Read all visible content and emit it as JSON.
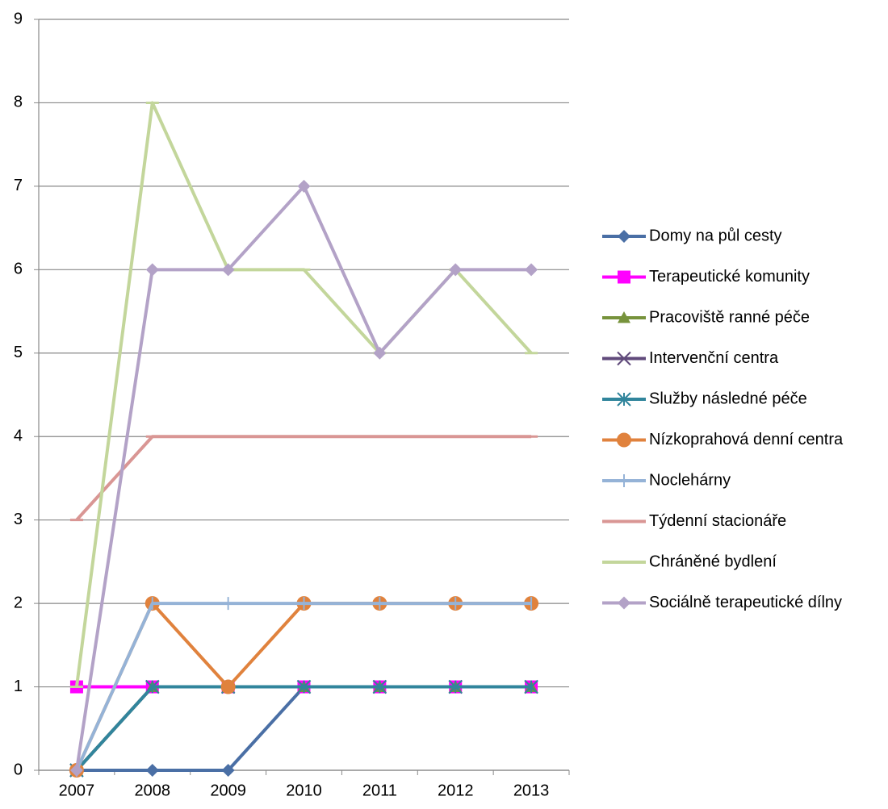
{
  "chart_data": {
    "type": "line",
    "categories": [
      "2007",
      "2008",
      "2009",
      "2010",
      "2011",
      "2012",
      "2013"
    ],
    "ylim": [
      0,
      9
    ],
    "yticks": [
      0,
      1,
      2,
      3,
      4,
      5,
      6,
      7,
      8,
      9
    ],
    "grid": true,
    "legend": "right",
    "series": [
      {
        "name": "Domy na půl cesty",
        "color": "#4a6fa5",
        "marker": "diamond",
        "values": [
          0,
          0,
          0,
          1,
          1,
          1,
          1
        ]
      },
      {
        "name": "Terapeutické komunity",
        "color": "#ff00ff",
        "marker": "square",
        "values": [
          1,
          1,
          1,
          1,
          1,
          1,
          1
        ]
      },
      {
        "name": "Pracoviště ranné péče",
        "color": "#77933c",
        "marker": "triangle",
        "values": [
          0,
          1,
          1,
          1,
          1,
          1,
          1
        ]
      },
      {
        "name": "Intervenční centra",
        "color": "#604a7b",
        "marker": "x",
        "values": [
          0,
          1,
          1,
          1,
          1,
          1,
          1
        ]
      },
      {
        "name": "Služby následné péče",
        "color": "#31859c",
        "marker": "star",
        "values": [
          0,
          1,
          1,
          1,
          1,
          1,
          1
        ]
      },
      {
        "name": "Nízkoprahová denní centra",
        "color": "#e0823d",
        "marker": "circle",
        "values": [
          0,
          2,
          1,
          2,
          2,
          2,
          2
        ]
      },
      {
        "name": "Noclehárny",
        "color": "#95b3d7",
        "marker": "plus",
        "values": [
          0,
          2,
          2,
          2,
          2,
          2,
          2
        ]
      },
      {
        "name": "Týdenní stacionáře",
        "color": "#d99694",
        "marker": "dash",
        "values": [
          3,
          4,
          4,
          4,
          4,
          4,
          4
        ]
      },
      {
        "name": "Chráněné bydlení",
        "color": "#c3d69b",
        "marker": "dash",
        "values": [
          1,
          8,
          6,
          6,
          5,
          6,
          5
        ]
      },
      {
        "name": "Sociálně terapeutické dílny",
        "color": "#b3a2c7",
        "marker": "diamond",
        "values": [
          0,
          6,
          6,
          7,
          5,
          6,
          6
        ]
      }
    ]
  }
}
